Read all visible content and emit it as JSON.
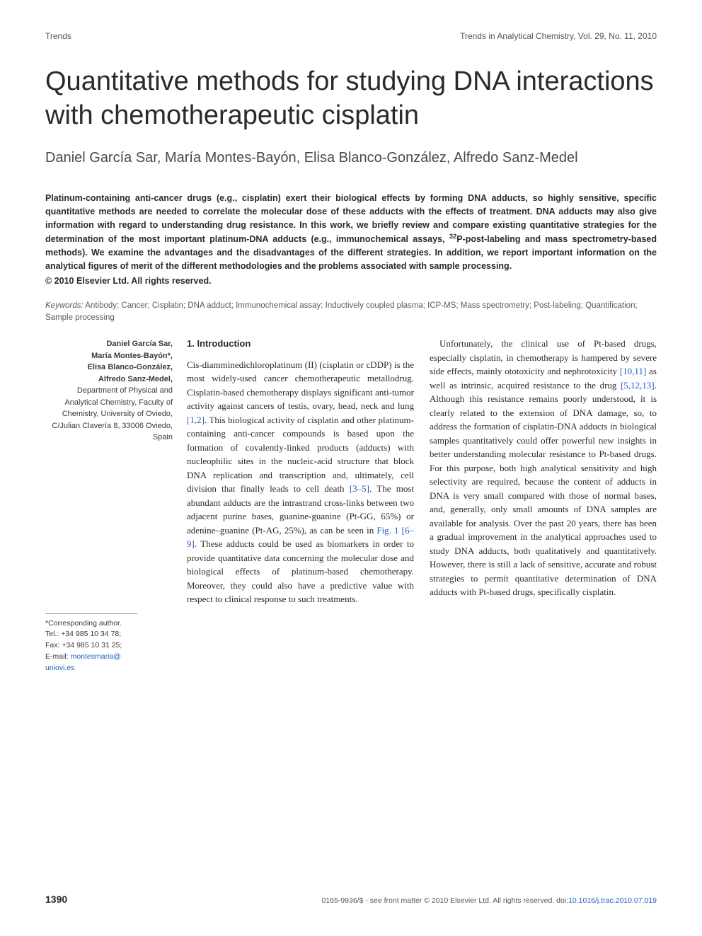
{
  "header": {
    "left": "Trends",
    "right": "Trends in Analytical Chemistry, Vol. 29, No. 11, 2010"
  },
  "title": "Quantitative methods for studying DNA interactions with chemotherapeutic cisplatin",
  "authors": "Daniel García Sar, María Montes-Bayón, Elisa Blanco-González, Alfredo Sanz-Medel",
  "abstract_main": "Platinum-containing anti-cancer drugs (e.g., cisplatin) exert their biological effects by forming DNA adducts, so highly sensitive, specific quantitative methods are needed to correlate the molecular dose of these adducts with the effects of treatment. DNA adducts may also give information with regard to understanding drug resistance. In this work, we briefly review and compare existing quantitative strategies for the determination of the most important platinum-DNA adducts (e.g., immunochemical assays, ",
  "abstract_sup": "32",
  "abstract_tail": "P-post-labeling and mass spectrometry-based methods). We examine the advantages and the disadvantages of the different strategies. In addition, we report important information on the analytical figures of merit of the different methodologies and the problems associated with sample processing.",
  "copyright": "© 2010 Elsevier Ltd. All rights reserved.",
  "keywords_label": "Keywords:",
  "keywords": " Antibody; Cancer; Cisplatin; DNA adduct; Immunochemical assay; Inductively coupled plasma; ICP-MS; Mass spectrometry; Post-labeling; Quantification; Sample processing",
  "affiliation": {
    "names": [
      "Daniel García Sar,",
      "María Montes-Bayón*,",
      "Elisa Blanco-González,",
      "Alfredo Sanz-Medel,"
    ],
    "dept": "Department of Physical and Analytical Chemistry, Faculty of Chemistry, University of Oviedo, C/Julian Clavería 8, 33006 Oviedo, Spain"
  },
  "corresponding": {
    "label": "*Corresponding author.",
    "tel": "Tel.: +34 985 10 34 78;",
    "fax": "Fax: +34 985 10 31 25;",
    "email_label": "E-mail: ",
    "email": "montesmaria@ uniovi.es"
  },
  "section1_heading": "1. Introduction",
  "para1_a": "Cis-diamminedichloroplatinum (II) (cisplatin or cDDP) is the most widely-used cancer chemotherapeutic metallodrug. Cisplatin-based chemotherapy displays significant anti-tumor activity against cancers of testis, ovary, head, neck and lung ",
  "ref1": "[1,2]",
  "para1_b": ". This biological activity of cisplatin and other platinum-containing anti-cancer compounds is based upon the formation of covalently-linked products (adducts) with nucleophilic sites in the nucleic-acid structure that block DNA replication and transcription and, ultimately, cell division that finally leads to cell death ",
  "ref2": "[3–5]",
  "para1_c": ". The most abundant adducts are the intrastrand cross-links between two adjacent purine bases, guanine-guanine (Pt-GG, 65%) or adenine–guanine (Pt-AG, 25%), as can be seen in ",
  "ref3": "Fig. 1 [6–9]",
  "para1_d": ". These adducts could be used as biomarkers in order to provide quantitative data concerning the molecular dose and biological effects of platinum-based chemotherapy. Moreover, they could also have a predictive value with respect to clinical response to such treatments.",
  "para2_a": "Unfortunately, the clinical use of Pt-based drugs, especially cisplatin, in chemotherapy is hampered by severe side effects, mainly ototoxicity and nephrotoxicity ",
  "ref4": "[10,11]",
  "para2_b": " as well as intrinsic, acquired resistance to the drug ",
  "ref5": "[5,12,13]",
  "para2_c": ". Although this resistance remains poorly understood, it is clearly related to the extension of DNA damage, so, to address the formation of cisplatin-DNA adducts in biological samples quantitatively could offer powerful new insights in better understanding molecular resistance to Pt-based drugs. For this purpose, both high analytical sensitivity and high selectivity are required, because the content of adducts in DNA is very small compared with those of normal bases, and, generally, only small amounts of DNA samples are available for analysis. Over the past 20 years, there has been a gradual improvement in the analytical approaches used to study DNA adducts, both qualitatively and quantitatively. However, there is still a lack of sensitive, accurate and robust strategies to permit quantitative determination of DNA adducts with Pt-based drugs, specifically cisplatin.",
  "footer": {
    "page": "1390",
    "rights": "0165-9936/$ - see front matter © 2010 Elsevier Ltd. All rights reserved. doi:",
    "doi": "10.1016/j.trac.2010.07.019"
  },
  "colors": {
    "text": "#2a2a2a",
    "muted": "#555555",
    "link": "#2060c0",
    "bg": "#ffffff"
  }
}
